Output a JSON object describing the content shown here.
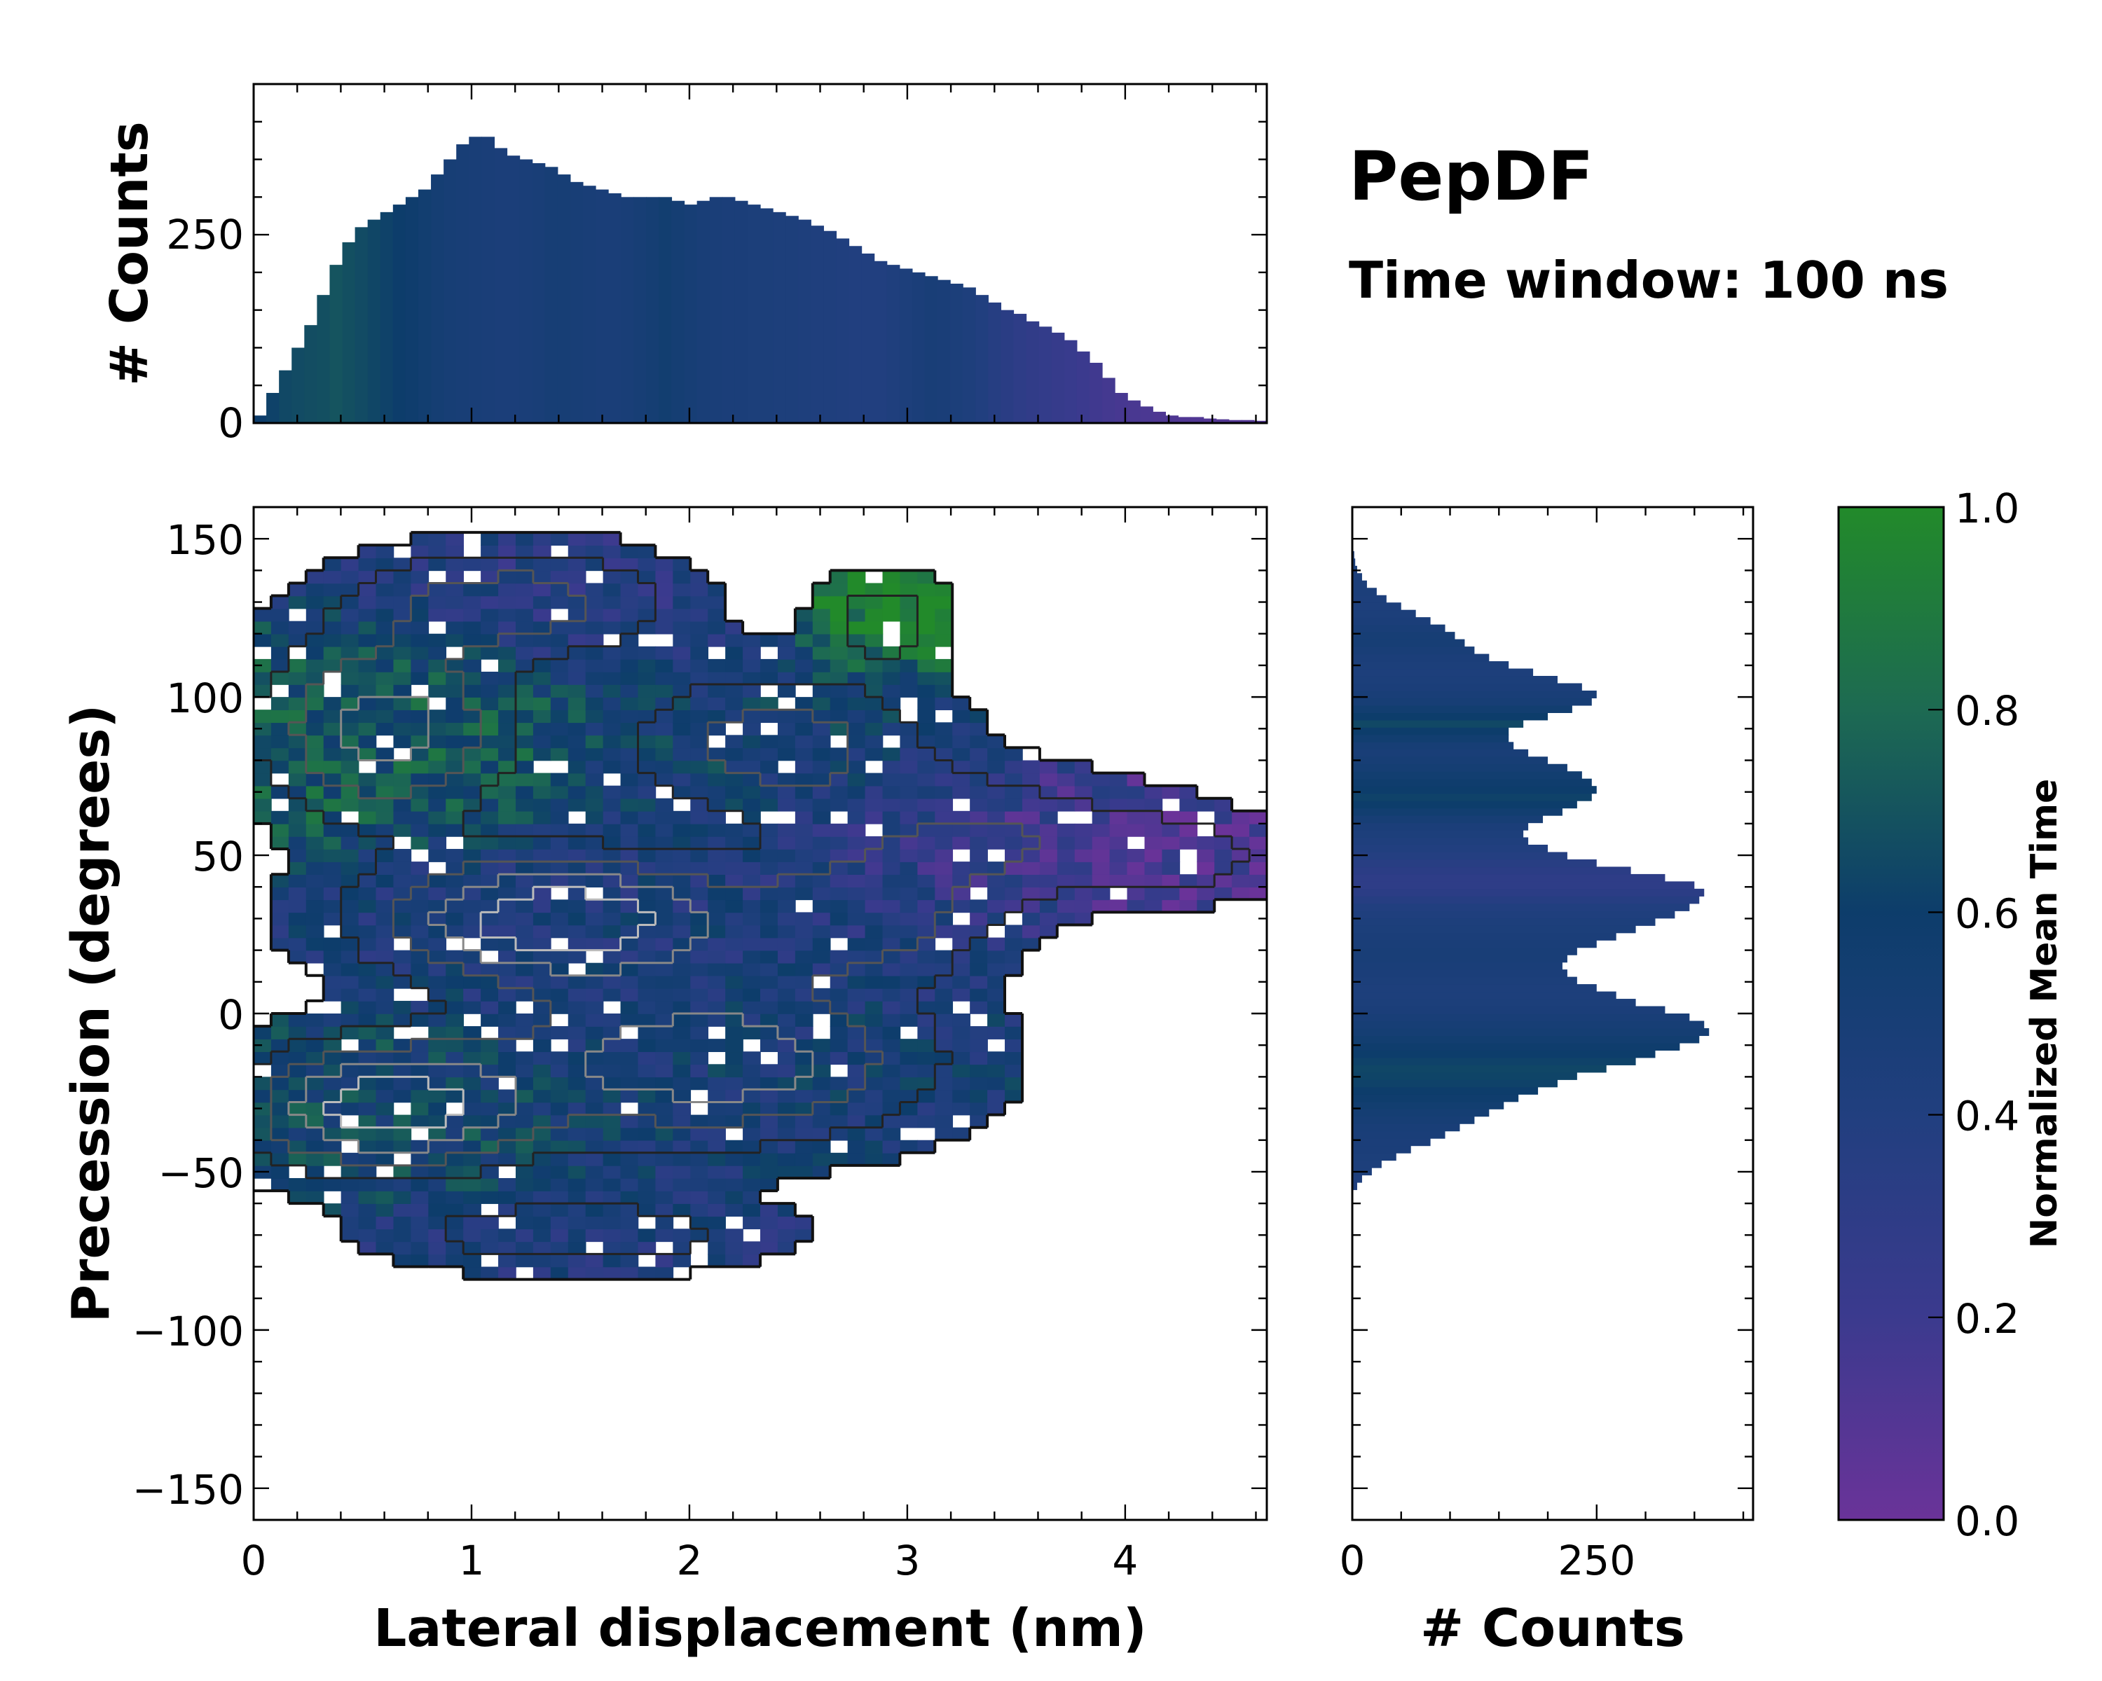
{
  "chart_data": {
    "type": "heatmap",
    "title": "PepDF",
    "subtitle": "Time window: 100 ns",
    "main": {
      "xlabel": "Lateral displacement (nm)",
      "ylabel": "Precession (degrees)",
      "xlim": [
        0,
        4.65
      ],
      "ylim": [
        -160,
        160
      ],
      "xticks": [
        0,
        1,
        2,
        3,
        4
      ],
      "yticks": [
        150,
        100,
        50,
        0,
        -50,
        -100,
        -150
      ],
      "ytick_labels": [
        "150",
        "100",
        "50",
        "0",
        "−50",
        "−100",
        "−150"
      ],
      "density_blobs": [
        {
          "x": 1.4,
          "y": 30,
          "sx": 0.6,
          "sy": 14,
          "w": 1.0,
          "t": 0.45
        },
        {
          "x": 0.6,
          "y": -30,
          "sx": 0.45,
          "sy": 14,
          "w": 0.95,
          "t": 0.62
        },
        {
          "x": 2.1,
          "y": -15,
          "sx": 0.7,
          "sy": 18,
          "w": 0.8,
          "t": 0.5
        },
        {
          "x": 0.6,
          "y": 90,
          "sx": 0.4,
          "sy": 20,
          "w": 0.75,
          "t": 0.72
        },
        {
          "x": 2.4,
          "y": 85,
          "sx": 0.5,
          "sy": 16,
          "w": 0.55,
          "t": 0.55
        },
        {
          "x": 3.4,
          "y": 55,
          "sx": 0.5,
          "sy": 14,
          "w": 0.45,
          "t": 0.2
        },
        {
          "x": 2.8,
          "y": 30,
          "sx": 0.4,
          "sy": 14,
          "w": 0.5,
          "t": 0.4
        },
        {
          "x": 1.2,
          "y": 130,
          "sx": 0.5,
          "sy": 12,
          "w": 0.55,
          "t": 0.35
        },
        {
          "x": 4.3,
          "y": 50,
          "sx": 0.3,
          "sy": 10,
          "w": 0.3,
          "t": 0.1
        },
        {
          "x": 2.9,
          "y": 125,
          "sx": 0.2,
          "sy": 10,
          "w": 0.35,
          "t": 0.95
        },
        {
          "x": 1.5,
          "y": -70,
          "sx": 0.6,
          "sy": 8,
          "w": 0.4,
          "t": 0.42
        }
      ]
    },
    "top_hist": {
      "ylabel": "# Counts",
      "yticks": [
        0,
        250
      ],
      "ylim": [
        0,
        450
      ],
      "bin_edges_range": [
        0,
        4.65
      ],
      "counts": [
        10,
        40,
        70,
        100,
        130,
        170,
        210,
        240,
        260,
        270,
        280,
        290,
        300,
        310,
        330,
        350,
        370,
        380,
        380,
        365,
        355,
        350,
        345,
        340,
        330,
        320,
        315,
        310,
        305,
        300,
        300,
        300,
        300,
        295,
        290,
        295,
        300,
        300,
        295,
        290,
        285,
        280,
        275,
        270,
        262,
        255,
        245,
        235,
        225,
        215,
        210,
        205,
        200,
        195,
        190,
        185,
        180,
        170,
        160,
        150,
        145,
        135,
        128,
        120,
        110,
        95,
        80,
        60,
        40,
        30,
        22,
        15,
        10,
        8,
        8,
        6,
        5,
        4,
        4,
        3
      ],
      "mean_time": [
        0.6,
        0.62,
        0.65,
        0.66,
        0.67,
        0.68,
        0.7,
        0.68,
        0.66,
        0.64,
        0.62,
        0.6,
        0.58,
        0.55,
        0.52,
        0.5,
        0.49,
        0.48,
        0.47,
        0.46,
        0.46,
        0.47,
        0.48,
        0.5,
        0.5,
        0.49,
        0.48,
        0.47,
        0.47,
        0.48,
        0.5,
        0.52,
        0.55,
        0.52,
        0.5,
        0.48,
        0.47,
        0.46,
        0.46,
        0.45,
        0.45,
        0.44,
        0.44,
        0.43,
        0.42,
        0.42,
        0.41,
        0.4,
        0.4,
        0.4,
        0.42,
        0.44,
        0.46,
        0.48,
        0.47,
        0.45,
        0.43,
        0.4,
        0.36,
        0.33,
        0.3,
        0.28,
        0.26,
        0.24,
        0.22,
        0.2,
        0.18,
        0.16,
        0.15,
        0.14,
        0.13,
        0.12,
        0.12,
        0.11,
        0.11,
        0.1,
        0.1,
        0.1,
        0.1,
        0.1
      ]
    },
    "right_hist": {
      "xlabel": "# Counts",
      "xticks": [
        0,
        250
      ],
      "xlim": [
        0,
        410
      ],
      "bin_range": [
        -160,
        160
      ],
      "counts": [
        0,
        0,
        0,
        0,
        0,
        0,
        0,
        0,
        0,
        0,
        0,
        0,
        0,
        0,
        0,
        0,
        0,
        0,
        0,
        0,
        0,
        0,
        0,
        0,
        0,
        0,
        0,
        0,
        0,
        0,
        0,
        0,
        0,
        0,
        0,
        0,
        0,
        0,
        0,
        0,
        0,
        0,
        0,
        0,
        0,
        5,
        10,
        20,
        30,
        45,
        60,
        80,
        95,
        110,
        125,
        140,
        155,
        170,
        190,
        210,
        230,
        260,
        290,
        310,
        335,
        355,
        365,
        360,
        345,
        320,
        290,
        270,
        250,
        230,
        220,
        215,
        220,
        230,
        250,
        270,
        290,
        310,
        330,
        345,
        355,
        360,
        350,
        320,
        285,
        250,
        220,
        200,
        180,
        175,
        180,
        195,
        215,
        230,
        245,
        250,
        245,
        235,
        220,
        200,
        180,
        165,
        160,
        160,
        175,
        200,
        225,
        245,
        250,
        235,
        210,
        185,
        160,
        140,
        125,
        115,
        105,
        95,
        80,
        65,
        50,
        35,
        25,
        15,
        10,
        5,
        3,
        2,
        0,
        0,
        0,
        0,
        0,
        0
      ],
      "mean_time": [
        0.4,
        0.4,
        0.4,
        0.4,
        0.4,
        0.4,
        0.4,
        0.4,
        0.4,
        0.4,
        0.4,
        0.4,
        0.4,
        0.4,
        0.4,
        0.4,
        0.4,
        0.4,
        0.4,
        0.4,
        0.4,
        0.4,
        0.4,
        0.4,
        0.4,
        0.4,
        0.4,
        0.4,
        0.4,
        0.4,
        0.4,
        0.4,
        0.4,
        0.4,
        0.4,
        0.4,
        0.4,
        0.4,
        0.4,
        0.4,
        0.4,
        0.4,
        0.4,
        0.4,
        0.4,
        0.42,
        0.42,
        0.44,
        0.44,
        0.45,
        0.46,
        0.46,
        0.47,
        0.48,
        0.5,
        0.52,
        0.55,
        0.58,
        0.6,
        0.62,
        0.63,
        0.64,
        0.62,
        0.6,
        0.58,
        0.55,
        0.52,
        0.5,
        0.48,
        0.46,
        0.45,
        0.44,
        0.44,
        0.45,
        0.46,
        0.47,
        0.48,
        0.48,
        0.47,
        0.46,
        0.45,
        0.44,
        0.42,
        0.4,
        0.36,
        0.32,
        0.3,
        0.3,
        0.32,
        0.35,
        0.38,
        0.4,
        0.42,
        0.44,
        0.46,
        0.5,
        0.55,
        0.6,
        0.62,
        0.6,
        0.58,
        0.55,
        0.52,
        0.5,
        0.48,
        0.5,
        0.55,
        0.6,
        0.65,
        0.6,
        0.55,
        0.5,
        0.48,
        0.46,
        0.45,
        0.44,
        0.45,
        0.46,
        0.48,
        0.5,
        0.5,
        0.48,
        0.46,
        0.45,
        0.44,
        0.44,
        0.45,
        0.45,
        0.45,
        0.45,
        0.45,
        0.45,
        0.45,
        0.45,
        0.45,
        0.45,
        0.45,
        0.45
      ]
    },
    "colorbar": {
      "label": "Normalized Mean Time",
      "range": [
        0,
        1
      ],
      "ticks": [
        "0.0",
        "0.2",
        "0.4",
        "0.6",
        "0.8",
        "1.0"
      ],
      "colors": [
        "#6a3399",
        "#3b3a8e",
        "#213f7f",
        "#0d3d6b",
        "#1d6a52",
        "#228a2a"
      ]
    }
  }
}
